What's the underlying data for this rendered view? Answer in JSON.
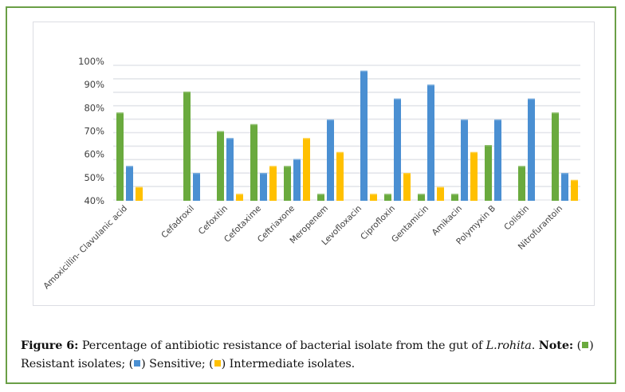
{
  "colors": {
    "resistant": "#6aaa3e",
    "sensitive": "#4a8fd2",
    "intermediate": "#ffc000",
    "frame": "#6a9f46",
    "grid": "#e3e5ea"
  },
  "chart_data": {
    "type": "bar",
    "title": "",
    "xlabel": "",
    "ylabel": "",
    "ylim": [
      40,
      100
    ],
    "yticks": [
      "40%",
      "50%",
      "60%",
      "70%",
      "80%",
      "90%",
      "100%"
    ],
    "ytick_values": [
      40,
      50,
      60,
      70,
      80,
      90,
      100
    ],
    "grid": true,
    "legend": "none (described in caption)",
    "categories": [
      "Amoxicillin- Clavulanic acid",
      "",
      "Cefadroxil",
      "Cefoxitin",
      "Cefotaxime",
      "Ceftriaxone",
      "Meropenem",
      "Levofloxacin",
      "Ciprofloxin",
      "Gentamicin",
      "Amikacin",
      "Polymyxin B",
      "Colistin",
      "Nitrofurantoin"
    ],
    "series": [
      {
        "name": "Resistant isolates",
        "color_key": "resistant",
        "values": [
          78,
          null,
          87,
          70,
          73,
          55,
          43,
          null,
          43,
          43,
          43,
          64,
          55,
          78
        ]
      },
      {
        "name": "Sensitive",
        "color_key": "sensitive",
        "values": [
          55,
          null,
          52,
          67,
          52,
          58,
          75,
          96,
          84,
          90,
          75,
          75,
          84,
          52
        ]
      },
      {
        "name": "Intermediate isolates",
        "color_key": "intermediate",
        "values": [
          46,
          null,
          null,
          43,
          55,
          67,
          61,
          43,
          52,
          46,
          61,
          null,
          null,
          49
        ]
      }
    ]
  },
  "caption": {
    "label": "Figure 6:",
    "text_part1": " Percentage of antibiotic resistance of bacterial isolate from the gut of ",
    "species": "L.rohita",
    "text_part2": ". ",
    "note_label": "Note:",
    "open1": " (",
    "close1": ")",
    "line2_item1": "Resistant isolates; (",
    "line2_item2": ") Sensitive; (",
    "line2_item3": ") Intermediate isolates."
  }
}
